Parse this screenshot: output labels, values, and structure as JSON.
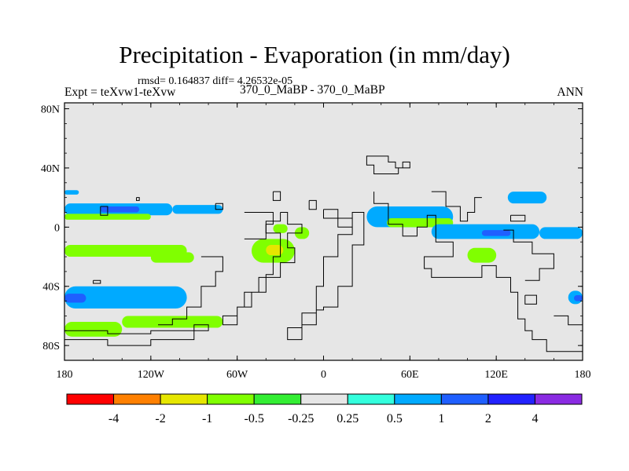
{
  "header": {
    "title": "Precipitation - Evaporation (in mm/day)",
    "stats": "rmsd= 0.164837 diff= 4.26532e-05",
    "left_label": "Expt = teXvw1-teXvw",
    "center_label": "370_0_MaBP - 370_0_MaBP",
    "right_label": "ANN"
  },
  "chart_data": {
    "type": "heatmap",
    "title": "Precipitation - Evaporation (in mm/day)",
    "xlabel": "",
    "ylabel": "",
    "xlim": [
      -180,
      180
    ],
    "ylim": [
      -90,
      84
    ],
    "x_ticks": [
      {
        "value": -180,
        "label": "180"
      },
      {
        "value": -120,
        "label": "120W"
      },
      {
        "value": -60,
        "label": "60W"
      },
      {
        "value": 0,
        "label": "0"
      },
      {
        "value": 60,
        "label": "60E"
      },
      {
        "value": 120,
        "label": "120E"
      },
      {
        "value": 180,
        "label": "180"
      }
    ],
    "y_ticks": [
      {
        "value": 80,
        "label": "80N"
      },
      {
        "value": 40,
        "label": "40N"
      },
      {
        "value": 0,
        "label": "0"
      },
      {
        "value": -40,
        "label": "40S"
      },
      {
        "value": -80,
        "label": "80S"
      }
    ],
    "colorbar": {
      "levels": [
        "-4",
        "-2",
        "-1",
        "-0.5",
        "-0.25",
        "0.25",
        "0.5",
        "1",
        "2",
        "4"
      ],
      "colors": [
        "#ff0000",
        "#ff8000",
        "#e6e600",
        "#80ff00",
        "#33ee33",
        "#e6e6e6",
        "#33ffdd",
        "#00aaff",
        "#1f5fff",
        "#2222ff",
        "#8a2be2"
      ]
    },
    "background_color": "#e6e6e6",
    "anomaly_regions": [
      {
        "name": "nh-subtropical-band-west",
        "level": "0.5",
        "lon": [
          -180,
          -105
        ],
        "lat": [
          8,
          16
        ]
      },
      {
        "name": "nh-band-core-west",
        "level": "1",
        "lon": [
          -155,
          -128
        ],
        "lat": [
          10,
          14
        ]
      },
      {
        "name": "nh-band-east-tail",
        "level": "0.5",
        "lon": [
          -105,
          -70
        ],
        "lat": [
          9,
          15
        ]
      },
      {
        "name": "nh-band-green-strip",
        "level": "-0.5",
        "lon": [
          -180,
          -120
        ],
        "lat": [
          5,
          9
        ]
      },
      {
        "name": "nh-band-north-edge",
        "level": "0.5",
        "lon": [
          -180,
          -170
        ],
        "lat": [
          22,
          25
        ]
      },
      {
        "name": "south-pacific-green-band",
        "level": "-0.5",
        "lon": [
          -180,
          -95
        ],
        "lat": [
          -20,
          -12
        ]
      },
      {
        "name": "south-pacific-green-tail",
        "level": "-0.5",
        "lon": [
          -120,
          -90
        ],
        "lat": [
          -24,
          -17
        ]
      },
      {
        "name": "midlat-south-band",
        "level": "0.5",
        "lon": [
          -180,
          -95
        ],
        "lat": [
          -55,
          -40
        ]
      },
      {
        "name": "midlat-south-core",
        "level": "1",
        "lon": [
          -180,
          -165
        ],
        "lat": [
          -51,
          -45
        ]
      },
      {
        "name": "far-south-green-band",
        "level": "-0.5",
        "lon": [
          -180,
          -140
        ],
        "lat": [
          -74,
          -64
        ]
      },
      {
        "name": "far-south-green-tail",
        "level": "-0.5",
        "lon": [
          -140,
          -70
        ],
        "lat": [
          -68,
          -60
        ]
      },
      {
        "name": "tropical-atlantic-green",
        "level": "-0.5",
        "lon": [
          -50,
          -20
        ],
        "lat": [
          -24,
          -8
        ]
      },
      {
        "name": "tropical-atlantic-core",
        "level": "-1",
        "lon": [
          -40,
          -28
        ],
        "lat": [
          -19,
          -12
        ]
      },
      {
        "name": "west-africa-green",
        "level": "-0.5",
        "lon": [
          -35,
          -25
        ],
        "lat": [
          -4,
          2
        ]
      },
      {
        "name": "indian-ocean-band",
        "level": "0.5",
        "lon": [
          30,
          90
        ],
        "lat": [
          0,
          14
        ]
      },
      {
        "name": "indian-ocean-green",
        "level": "-0.5",
        "lon": [
          44,
          90
        ],
        "lat": [
          0,
          6
        ]
      },
      {
        "name": "east-asia-cyan",
        "level": "0.5",
        "lon": [
          75,
          150
        ],
        "lat": [
          -8,
          2
        ]
      },
      {
        "name": "east-asia-blue",
        "level": "1",
        "lon": [
          110,
          130
        ],
        "lat": [
          -6,
          -2
        ]
      },
      {
        "name": "maritime-green",
        "level": "-0.5",
        "lon": [
          100,
          120
        ],
        "lat": [
          -24,
          -14
        ]
      },
      {
        "name": "west-pacific-cyan",
        "level": "0.5",
        "lon": [
          128,
          155
        ],
        "lat": [
          16,
          24
        ]
      },
      {
        "name": "east-pacific-cyan",
        "level": "0.5",
        "lon": [
          150,
          180
        ],
        "lat": [
          -8,
          0
        ]
      },
      {
        "name": "south-indian-east-cyan",
        "level": "0.5",
        "lon": [
          170,
          180
        ],
        "lat": [
          -52,
          -43
        ]
      },
      {
        "name": "south-indian-east-blue",
        "level": "1",
        "lon": [
          174,
          180
        ],
        "lat": [
          -50,
          -46
        ]
      },
      {
        "name": "mid-pacific-green-blob",
        "level": "-0.5",
        "lon": [
          -20,
          -10
        ],
        "lat": [
          -8,
          0
        ]
      }
    ],
    "coastline": [
      [
        [
          -30,
          10
        ],
        [
          -25,
          10
        ],
        [
          -25,
          2
        ],
        [
          -15,
          2
        ],
        [
          -15,
          -4
        ],
        [
          -25,
          -4
        ],
        [
          -25,
          -14
        ],
        [
          -20,
          -14
        ],
        [
          -20,
          -24
        ],
        [
          -30,
          -24
        ],
        [
          -30,
          -34
        ],
        [
          -45,
          -34
        ],
        [
          -45,
          -44
        ],
        [
          -55,
          -44
        ],
        [
          -55,
          -54
        ],
        [
          -60,
          -54
        ],
        [
          -60,
          -60
        ],
        [
          -70,
          -60
        ],
        [
          -70,
          -66
        ],
        [
          -60,
          -66
        ],
        [
          -60,
          -54
        ],
        [
          -50,
          -54
        ],
        [
          -50,
          -44
        ],
        [
          -40,
          -44
        ],
        [
          -40,
          -32
        ],
        [
          -35,
          -32
        ],
        [
          -35,
          -20
        ],
        [
          -30,
          -20
        ],
        [
          -30,
          -4
        ],
        [
          -40,
          -4
        ],
        [
          -40,
          4
        ],
        [
          -30,
          4
        ],
        [
          -30,
          10
        ]
      ],
      [
        [
          0,
          12
        ],
        [
          0,
          6
        ],
        [
          20,
          6
        ],
        [
          20,
          -5
        ],
        [
          10,
          -5
        ],
        [
          10,
          -20
        ],
        [
          0,
          -20
        ],
        [
          0,
          -40
        ],
        [
          -5,
          -40
        ],
        [
          -5,
          -58
        ],
        [
          -15,
          -58
        ],
        [
          -15,
          -68
        ],
        [
          -25,
          -68
        ],
        [
          -25,
          -76
        ],
        [
          -15,
          -76
        ],
        [
          -15,
          -66
        ],
        [
          -5,
          -66
        ],
        [
          -5,
          -56
        ],
        [
          0,
          -56
        ],
        [
          0,
          -54
        ],
        [
          10,
          -54
        ],
        [
          10,
          -40
        ],
        [
          20,
          -40
        ],
        [
          20,
          -12
        ],
        [
          28,
          -12
        ],
        [
          28,
          10
        ],
        [
          20,
          10
        ],
        [
          20,
          0
        ],
        [
          10,
          0
        ],
        [
          10,
          12
        ],
        [
          0,
          12
        ]
      ],
      [
        [
          52,
          36
        ],
        [
          35,
          36
        ],
        [
          35,
          42
        ],
        [
          30,
          42
        ],
        [
          30,
          48
        ],
        [
          45,
          48
        ],
        [
          45,
          44
        ],
        [
          50,
          44
        ],
        [
          50,
          40
        ],
        [
          55,
          40
        ],
        [
          55,
          44
        ],
        [
          60,
          44
        ],
        [
          60,
          40
        ],
        [
          52,
          40
        ],
        [
          52,
          36
        ]
      ],
      [
        [
          35,
          24
        ],
        [
          35,
          16
        ],
        [
          45,
          16
        ],
        [
          45,
          2
        ],
        [
          55,
          2
        ],
        [
          55,
          -6
        ],
        [
          65,
          -6
        ],
        [
          65,
          0
        ],
        [
          72,
          0
        ],
        [
          72,
          8
        ],
        [
          78,
          8
        ],
        [
          78,
          -10
        ],
        [
          90,
          -10
        ],
        [
          90,
          -20
        ],
        [
          70,
          -20
        ],
        [
          70,
          -28
        ],
        [
          75,
          -28
        ],
        [
          75,
          -34
        ],
        [
          110,
          -34
        ],
        [
          110,
          -26
        ],
        [
          120,
          -26
        ],
        [
          120,
          -34
        ],
        [
          130,
          -34
        ],
        [
          130,
          -44
        ],
        [
          135,
          -44
        ],
        [
          135,
          -62
        ],
        [
          140,
          -62
        ],
        [
          140,
          -70
        ],
        [
          145,
          -70
        ],
        [
          145,
          -76
        ],
        [
          155,
          -76
        ],
        [
          155,
          -84
        ],
        [
          180,
          -84
        ]
      ],
      [
        [
          -180,
          -76
        ],
        [
          -150,
          -76
        ],
        [
          -150,
          -80
        ],
        [
          -120,
          -80
        ],
        [
          -120,
          -76
        ],
        [
          -90,
          -76
        ],
        [
          -90,
          -70
        ],
        [
          -80,
          -70
        ],
        [
          -80,
          -66
        ],
        [
          -90,
          -66
        ],
        [
          -90,
          -70
        ],
        [
          -120,
          -70
        ],
        [
          -120,
          -72
        ],
        [
          -150,
          -72
        ],
        [
          -150,
          -70
        ],
        [
          -180,
          -70
        ]
      ],
      [
        [
          -55,
          10
        ],
        [
          -35,
          10
        ],
        [
          -35,
          2
        ],
        [
          -40,
          2
        ],
        [
          -40,
          -8
        ],
        [
          -55,
          -8
        ]
      ],
      [
        [
          -85,
          -20
        ],
        [
          -70,
          -20
        ],
        [
          -70,
          -30
        ],
        [
          -75,
          -30
        ],
        [
          -75,
          -40
        ],
        [
          -85,
          -40
        ],
        [
          -85,
          -54
        ],
        [
          -95,
          -54
        ],
        [
          -95,
          -62
        ],
        [
          -105,
          -62
        ],
        [
          -105,
          -66
        ],
        [
          -115,
          -66
        ]
      ],
      [
        [
          -35,
          24
        ],
        [
          -30,
          24
        ],
        [
          -30,
          18
        ],
        [
          -35,
          18
        ],
        [
          -35,
          24
        ]
      ],
      [
        [
          -10,
          18
        ],
        [
          -5,
          18
        ],
        [
          -5,
          12
        ],
        [
          -10,
          12
        ],
        [
          -10,
          18
        ]
      ],
      [
        [
          110,
          20
        ],
        [
          105,
          20
        ],
        [
          105,
          10
        ],
        [
          100,
          10
        ],
        [
          100,
          4
        ],
        [
          95,
          4
        ],
        [
          95,
          14
        ],
        [
          85,
          14
        ],
        [
          85,
          24
        ],
        [
          75,
          24
        ]
      ],
      [
        [
          125,
          -2
        ],
        [
          132,
          -2
        ],
        [
          132,
          -10
        ],
        [
          145,
          -10
        ],
        [
          145,
          -18
        ],
        [
          160,
          -18
        ],
        [
          160,
          -28
        ],
        [
          150,
          -28
        ],
        [
          150,
          -36
        ],
        [
          140,
          -36
        ]
      ],
      [
        [
          130,
          8
        ],
        [
          140,
          8
        ],
        [
          140,
          4
        ],
        [
          130,
          4
        ],
        [
          130,
          8
        ]
      ],
      [
        [
          140,
          -46
        ],
        [
          148,
          -46
        ],
        [
          148,
          -52
        ],
        [
          140,
          -52
        ],
        [
          140,
          -46
        ]
      ],
      [
        [
          160,
          -60
        ],
        [
          170,
          -60
        ],
        [
          170,
          -66
        ],
        [
          180,
          -66
        ]
      ],
      [
        [
          -155,
          14
        ],
        [
          -150,
          14
        ],
        [
          -150,
          8
        ],
        [
          -155,
          8
        ],
        [
          -155,
          14
        ]
      ],
      [
        [
          -130,
          20
        ],
        [
          -128,
          20
        ],
        [
          -128,
          18
        ],
        [
          -130,
          18
        ],
        [
          -130,
          20
        ]
      ],
      [
        [
          -75,
          16
        ],
        [
          -70,
          16
        ],
        [
          -70,
          12
        ],
        [
          -75,
          12
        ],
        [
          -75,
          16
        ]
      ],
      [
        [
          -160,
          -36
        ],
        [
          -155,
          -36
        ],
        [
          -155,
          -38
        ],
        [
          -160,
          -38
        ],
        [
          -160,
          -36
        ]
      ]
    ]
  }
}
